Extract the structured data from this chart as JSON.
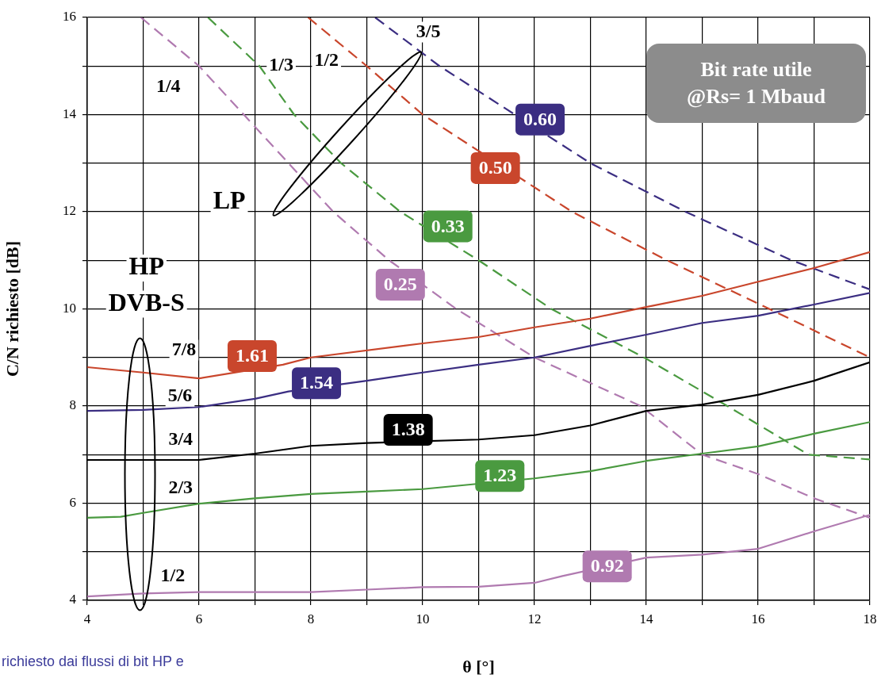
{
  "chart_data": {
    "type": "line",
    "xlabel": "θ [°]",
    "ylabel": "C/N richiesto [dB]",
    "xlim": [
      4,
      18
    ],
    "xticks": [
      4,
      {
        "value": 5,
        "label": null
      },
      6,
      {
        "value": 7,
        "label": null
      },
      8,
      {
        "value": 9,
        "label": null
      },
      10,
      {
        "value": 11,
        "label": null
      },
      12,
      {
        "value": 13,
        "label": null
      },
      14,
      {
        "value": 15,
        "label": null
      },
      16,
      {
        "value": 17,
        "label": null
      },
      18
    ],
    "ylim": [
      4,
      16
    ],
    "yticks": [
      4,
      {
        "value": 5,
        "label": null
      },
      6,
      {
        "value": 7,
        "label": null
      },
      8,
      {
        "value": 9,
        "label": null
      },
      10,
      {
        "value": 11,
        "label": null
      },
      12,
      {
        "value": 13,
        "label": null
      },
      14,
      {
        "value": 15,
        "label": null
      },
      16
    ],
    "grid": true,
    "legend": false,
    "marker": "none",
    "series": [
      {
        "color": "#c9462c",
        "line_style": "solid",
        "x": [
          4,
          5,
          6,
          7.5,
          8,
          10,
          11,
          12,
          13,
          14,
          15,
          16,
          17,
          18
        ],
        "values": [
          8.8,
          8.69,
          8.57,
          8.85,
          9.0,
          9.29,
          9.42,
          9.62,
          9.8,
          10.04,
          10.27,
          10.56,
          10.84,
          11.17
        ]
      },
      {
        "color": "#3b2e82",
        "line_style": "solid",
        "x": [
          4,
          5,
          6,
          7,
          7.6,
          9,
          10,
          11,
          12,
          13,
          14,
          15,
          16,
          17,
          18
        ],
        "values": [
          7.9,
          7.92,
          7.98,
          8.15,
          8.3,
          8.52,
          8.69,
          8.85,
          9.0,
          9.24,
          9.47,
          9.71,
          9.86,
          10.09,
          10.33
        ]
      },
      {
        "color": "#000000",
        "line_style": "solid",
        "x": [
          4,
          6,
          7,
          8,
          9,
          11,
          12,
          13,
          14,
          15,
          16,
          17,
          18
        ],
        "values": [
          6.89,
          6.89,
          7.02,
          7.18,
          7.24,
          7.31,
          7.4,
          7.6,
          7.9,
          8.03,
          8.23,
          8.52,
          8.9
        ]
      },
      {
        "color": "#4a9a40",
        "line_style": "solid",
        "x": [
          4,
          4.6,
          5,
          6,
          7,
          8,
          9,
          10,
          12,
          13,
          14,
          15,
          16,
          17,
          18
        ],
        "values": [
          5.7,
          5.72,
          5.8,
          5.99,
          6.1,
          6.19,
          6.24,
          6.29,
          6.51,
          6.66,
          6.87,
          7.02,
          7.17,
          7.43,
          7.67
        ]
      },
      {
        "color": "#b07ab0",
        "line_style": "solid",
        "x": [
          4,
          5,
          6,
          8,
          9,
          10,
          11,
          12,
          12.5,
          14,
          15,
          16,
          17,
          18
        ],
        "values": [
          4.08,
          4.14,
          4.17,
          4.17,
          4.22,
          4.27,
          4.28,
          4.36,
          4.5,
          4.88,
          4.94,
          5.06,
          5.42,
          5.76
        ]
      },
      {
        "color": "#b07ab0",
        "line_style": "dashed",
        "x": [
          4.96,
          6,
          6.8,
          7.6,
          8.4,
          9.4,
          10.6,
          12,
          13.9,
          15,
          16,
          17,
          18
        ],
        "values": [
          16,
          15,
          14,
          13,
          12,
          11,
          10,
          9,
          8,
          7,
          6.6,
          6.1,
          5.7
        ]
      },
      {
        "color": "#4a9a40",
        "line_style": "dashed",
        "x": [
          6.16,
          7.08,
          7.7,
          8.54,
          9.6,
          11.0,
          12.3,
          13.96,
          15.45,
          16.9,
          18
        ],
        "values": [
          16,
          15,
          14,
          13,
          12,
          11,
          10,
          9,
          8,
          7,
          6.9
        ]
      },
      {
        "color": "#c9462c",
        "line_style": "dashed",
        "x": [
          7.95,
          9.0,
          10.0,
          12.67,
          14.37,
          16.2,
          18
        ],
        "values": [
          16,
          15,
          14,
          12,
          11,
          10,
          9.0
        ]
      },
      {
        "color": "#3b2e82",
        "line_style": "dashed",
        "x": [
          9.15,
          10.3,
          13.0,
          14.7,
          16.6,
          18
        ],
        "values": [
          16,
          15,
          13,
          12,
          11,
          10.4
        ]
      }
    ],
    "annotations": [
      "Bit rate utile @Rs= 1 Mbaud",
      "richiesto dai flussi di bit HP e",
      "0.60",
      "0.50",
      "0.33",
      "0.25",
      "1.61",
      "1.54",
      "1.38",
      "1.23",
      "0.92",
      "1/4",
      "1/3",
      "1/2",
      "3/5",
      "7/8",
      "5/6",
      "3/4",
      "2/3",
      "1/2",
      "LP",
      "HP",
      "DVB-S"
    ]
  }
}
